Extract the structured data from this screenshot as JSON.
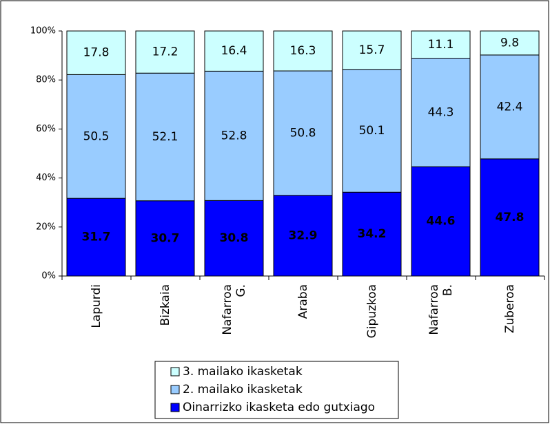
{
  "chart_data": {
    "type": "stacked_bar",
    "categories": [
      "Lapurdi",
      "Bizkaia",
      "Nafarroa G.",
      "Araba",
      "Gipuzkoa",
      "Nafarroa B.",
      "Zuberoa"
    ],
    "series": [
      {
        "name": "Oinarrizko ikasketa edo gutxiago",
        "color": "#0000ff",
        "values": [
          31.7,
          30.7,
          30.8,
          32.9,
          34.2,
          44.6,
          47.8
        ]
      },
      {
        "name": "2. mailako ikasketak",
        "color": "#99ccff",
        "values": [
          50.5,
          52.1,
          52.8,
          50.8,
          50.1,
          44.3,
          42.4
        ]
      },
      {
        "name": "3. mailako ikasketak",
        "color": "#ccffff",
        "values": [
          17.8,
          17.2,
          16.4,
          16.3,
          15.7,
          11.1,
          9.8
        ]
      }
    ],
    "ylim": [
      0,
      100
    ],
    "yticks": [
      {
        "value": 0,
        "label": "0%"
      },
      {
        "value": 20,
        "label": "20%"
      },
      {
        "value": 40,
        "label": "40%"
      },
      {
        "value": 60,
        "label": "60%"
      },
      {
        "value": 80,
        "label": "80%"
      },
      {
        "value": 100,
        "label": "100%"
      }
    ],
    "legend": "bottom"
  }
}
